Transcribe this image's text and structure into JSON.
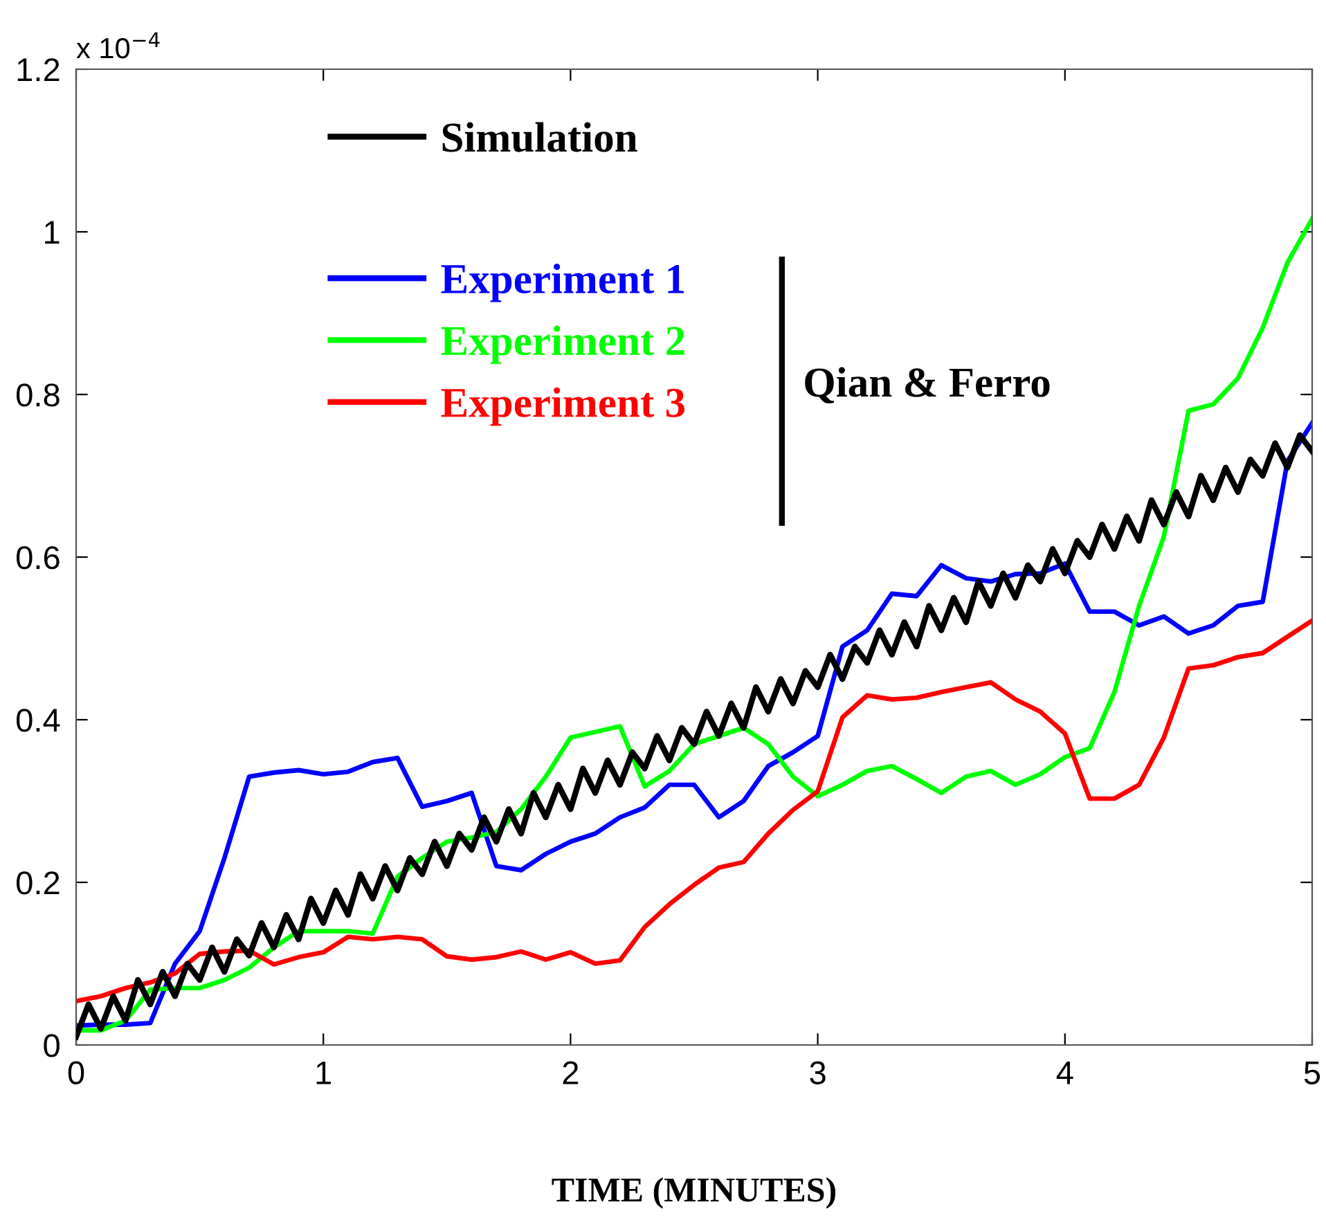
{
  "chart_data": {
    "type": "line",
    "xlabel": "TIME (MINUTES)",
    "xlim": [
      0,
      5
    ],
    "ylim": [
      0,
      1.2
    ],
    "xticks": [
      0,
      1,
      2,
      3,
      4,
      5
    ],
    "yticks": [
      0,
      0.2,
      0.4,
      0.6,
      0.8,
      1,
      1.2
    ],
    "grid": false,
    "legend": "top left",
    "marker": "none",
    "line_style": "solid",
    "annotations": [
      "x 10$^{−4}$",
      "Qian & Ferro"
    ],
    "series": [
      {
        "name": "Simulation",
        "color": "#000000",
        "x": [
          0,
          0.05,
          0.1,
          0.15,
          0.2,
          0.25,
          0.3,
          0.35,
          0.4,
          0.45,
          0.5,
          0.55,
          0.6,
          0.65,
          0.7,
          0.75,
          0.8,
          0.85,
          0.9,
          0.95,
          1,
          1.05,
          1.1,
          1.15,
          1.2,
          1.25,
          1.3,
          1.35,
          1.4,
          1.45,
          1.5,
          1.55,
          1.6,
          1.65,
          1.7,
          1.75,
          1.8,
          1.85,
          1.9,
          1.95,
          2,
          2.05,
          2.1,
          2.15,
          2.2,
          2.25,
          2.3,
          2.35,
          2.4,
          2.45,
          2.5,
          2.55,
          2.6,
          2.65,
          2.7,
          2.75,
          2.8,
          2.85,
          2.9,
          2.95,
          3,
          3.05,
          3.1,
          3.15,
          3.2,
          3.25,
          3.3,
          3.35,
          3.4,
          3.45,
          3.5,
          3.55,
          3.6,
          3.65,
          3.7,
          3.75,
          3.8,
          3.85,
          3.9,
          3.95,
          4,
          4.05,
          4.1,
          4.15,
          4.2,
          4.25,
          4.3,
          4.35,
          4.4,
          4.45,
          4.5,
          4.55,
          4.6,
          4.65,
          4.7,
          4.75,
          4.8,
          4.85,
          4.9,
          4.95,
          5
        ],
        "values": [
          0.01,
          0.05,
          0.02,
          0.06,
          0.03,
          0.08,
          0.05,
          0.09,
          0.06,
          0.1,
          0.08,
          0.12,
          0.09,
          0.13,
          0.11,
          0.15,
          0.12,
          0.16,
          0.13,
          0.18,
          0.15,
          0.19,
          0.16,
          0.21,
          0.18,
          0.22,
          0.19,
          0.23,
          0.21,
          0.25,
          0.22,
          0.26,
          0.24,
          0.28,
          0.25,
          0.29,
          0.26,
          0.31,
          0.28,
          0.32,
          0.29,
          0.34,
          0.31,
          0.35,
          0.32,
          0.36,
          0.34,
          0.38,
          0.35,
          0.39,
          0.37,
          0.41,
          0.38,
          0.42,
          0.39,
          0.44,
          0.41,
          0.45,
          0.42,
          0.46,
          0.44,
          0.48,
          0.45,
          0.49,
          0.47,
          0.51,
          0.48,
          0.52,
          0.49,
          0.54,
          0.51,
          0.55,
          0.52,
          0.57,
          0.54,
          0.58,
          0.55,
          0.59,
          0.57,
          0.61,
          0.58,
          0.62,
          0.6,
          0.64,
          0.61,
          0.65,
          0.62,
          0.67,
          0.64,
          0.68,
          0.65,
          0.7,
          0.67,
          0.71,
          0.68,
          0.72,
          0.7,
          0.74,
          0.71,
          0.75,
          0.73
        ]
      },
      {
        "name": "Experiment 1",
        "color": "#0000ff",
        "x": [
          0,
          0.1,
          0.2,
          0.3,
          0.4,
          0.5,
          0.6,
          0.7,
          0.8,
          0.9,
          1,
          1.1,
          1.2,
          1.3,
          1.4,
          1.5,
          1.6,
          1.7,
          1.8,
          1.9,
          2,
          2.1,
          2.2,
          2.3,
          2.4,
          2.5,
          2.6,
          2.7,
          2.8,
          2.9,
          3,
          3.1,
          3.2,
          3.3,
          3.4,
          3.5,
          3.6,
          3.7,
          3.8,
          3.9,
          4,
          4.1,
          4.2,
          4.3,
          4.4,
          4.5,
          4.6,
          4.7,
          4.8,
          4.9,
          5
        ],
        "values": [
          0.024,
          0.025,
          0.025,
          0.027,
          0.1,
          0.14,
          0.23,
          0.33,
          0.335,
          0.338,
          0.333,
          0.336,
          0.348,
          0.353,
          0.293,
          0.3,
          0.31,
          0.22,
          0.215,
          0.235,
          0.25,
          0.26,
          0.28,
          0.292,
          0.32,
          0.32,
          0.28,
          0.3,
          0.343,
          0.36,
          0.38,
          0.49,
          0.51,
          0.555,
          0.552,
          0.59,
          0.574,
          0.57,
          0.579,
          0.58,
          0.592,
          0.533,
          0.533,
          0.516,
          0.527,
          0.506,
          0.516,
          0.54,
          0.545,
          0.718,
          0.765
        ]
      },
      {
        "name": "Experiment 2",
        "color": "#00ff00",
        "x": [
          0,
          0.1,
          0.2,
          0.3,
          0.4,
          0.5,
          0.6,
          0.7,
          0.8,
          0.9,
          1,
          1.1,
          1.2,
          1.3,
          1.4,
          1.5,
          1.6,
          1.7,
          1.8,
          1.9,
          2,
          2.1,
          2.2,
          2.3,
          2.4,
          2.5,
          2.6,
          2.7,
          2.8,
          2.9,
          3,
          3.1,
          3.2,
          3.3,
          3.4,
          3.5,
          3.6,
          3.7,
          3.8,
          3.9,
          4,
          4.1,
          4.2,
          4.3,
          4.4,
          4.5,
          4.6,
          4.7,
          4.8,
          4.9,
          5
        ],
        "values": [
          0.018,
          0.018,
          0.03,
          0.068,
          0.07,
          0.07,
          0.08,
          0.095,
          0.12,
          0.14,
          0.14,
          0.14,
          0.137,
          0.207,
          0.23,
          0.25,
          0.255,
          0.262,
          0.29,
          0.33,
          0.378,
          0.385,
          0.392,
          0.318,
          0.337,
          0.37,
          0.38,
          0.39,
          0.37,
          0.33,
          0.306,
          0.32,
          0.337,
          0.343,
          0.327,
          0.31,
          0.33,
          0.337,
          0.32,
          0.333,
          0.354,
          0.365,
          0.434,
          0.54,
          0.625,
          0.78,
          0.788,
          0.82,
          0.882,
          0.962,
          1.016
        ]
      },
      {
        "name": "Experiment 3",
        "color": "#ff0000",
        "x": [
          0,
          0.1,
          0.2,
          0.3,
          0.4,
          0.5,
          0.6,
          0.7,
          0.8,
          0.9,
          1,
          1.1,
          1.2,
          1.3,
          1.4,
          1.5,
          1.6,
          1.7,
          1.8,
          1.9,
          2,
          2.1,
          2.2,
          2.3,
          2.4,
          2.5,
          2.6,
          2.7,
          2.8,
          2.9,
          3,
          3.1,
          3.2,
          3.3,
          3.4,
          3.5,
          3.6,
          3.7,
          3.8,
          3.9,
          4,
          4.1,
          4.2,
          4.3,
          4.4,
          4.5,
          4.6,
          4.7,
          4.8,
          4.9,
          5
        ],
        "values": [
          0.054,
          0.06,
          0.07,
          0.077,
          0.088,
          0.112,
          0.115,
          0.116,
          0.099,
          0.108,
          0.114,
          0.133,
          0.13,
          0.133,
          0.13,
          0.109,
          0.105,
          0.108,
          0.115,
          0.105,
          0.114,
          0.1,
          0.104,
          0.145,
          0.173,
          0.197,
          0.218,
          0.225,
          0.26,
          0.289,
          0.312,
          0.403,
          0.43,
          0.425,
          0.427,
          0.434,
          0.44,
          0.446,
          0.425,
          0.41,
          0.383,
          0.303,
          0.303,
          0.32,
          0.378,
          0.463,
          0.467,
          0.477,
          0.482,
          0.502,
          0.522
        ]
      }
    ]
  }
}
